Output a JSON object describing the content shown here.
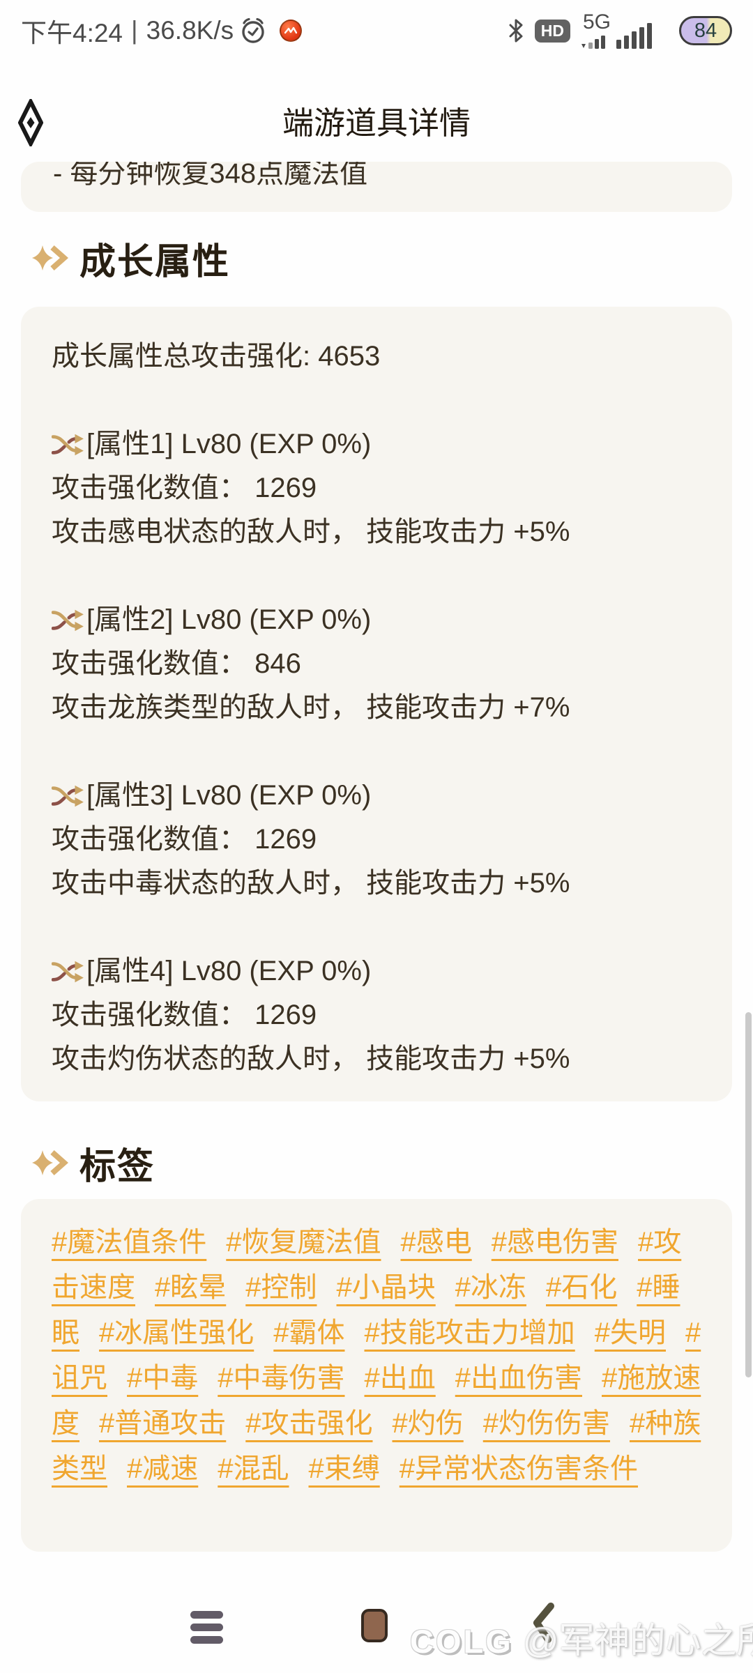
{
  "status_bar": {
    "time": "下午4:24",
    "separator": "|",
    "net_speed": "36.8K/s",
    "network_type": "5G",
    "hd_label": "HD",
    "battery_level": "84"
  },
  "header": {
    "title": "端游道具详情"
  },
  "scroll_top_partial": {
    "text": "- 每分钟恢复348点魔法值"
  },
  "growth_section": {
    "title": "成长属性",
    "total_line": "成长属性总攻击强化: 4653",
    "attributes": [
      {
        "name": "[属性1] Lv80 (EXP 0%)",
        "value_line": "攻击强化数值： 1269",
        "effect_line": "攻击感电状态的敌人时， 技能攻击力 +5%"
      },
      {
        "name": "[属性2] Lv80 (EXP 0%)",
        "value_line": "攻击强化数值： 846",
        "effect_line": "攻击龙族类型的敌人时， 技能攻击力 +7%"
      },
      {
        "name": "[属性3] Lv80 (EXP 0%)",
        "value_line": "攻击强化数值： 1269",
        "effect_line": "攻击中毒状态的敌人时， 技能攻击力 +5%"
      },
      {
        "name": "[属性4] Lv80 (EXP 0%)",
        "value_line": "攻击强化数值： 1269",
        "effect_line": "攻击灼伤状态的敌人时， 技能攻击力 +5%"
      }
    ]
  },
  "tags_section": {
    "title": "标签",
    "tags": [
      "#魔法值条件",
      "#恢复魔法值",
      "#感电",
      "#感电伤害",
      "#攻击速度",
      "#眩晕",
      "#控制",
      "#小晶块",
      "#冰冻",
      "#石化",
      "#睡眠",
      "#冰属性强化",
      "#霸体",
      "#技能攻击力增加",
      "#失明",
      "#诅咒",
      "#中毒",
      "#中毒伤害",
      "#出血",
      "#出血伤害",
      "#施放速度",
      "#普通攻击",
      "#攻击强化",
      "#灼伤",
      "#灼伤伤害",
      "#种族类型",
      "#减速",
      "#混乱",
      "#束缚",
      "#异常状态伤害条件"
    ]
  },
  "bottom_bar": {
    "watermark_brand": "COLG",
    "watermark_text": "@军神的心之所念，"
  },
  "icons": {
    "status_left": [
      "alarm-clock-icon",
      "red-dot-icon"
    ],
    "status_right": [
      "bluetooth-icon",
      "hd-badge",
      "signal-bars-icon",
      "battery-indicator"
    ],
    "header": [
      "app-logo-icon"
    ],
    "sections": [
      "section-arrow-icon"
    ],
    "attribute_rows": [
      "shuffle-icon"
    ],
    "bottom_nav": [
      "recents-icon",
      "home-icon",
      "back-chevron-icon"
    ]
  },
  "colors": {
    "card_bg": "#F7F5F0",
    "text_dark": "#3B3123",
    "section_title": "#281F12",
    "accent_gold": "#D9B070",
    "tag_orange": "#F0A62F",
    "shuffle_maroon": "#8D5148",
    "shuffle_gold": "#C8A262",
    "nav_square_brown": "#8F664E",
    "status_gray": "#4B4B4B"
  }
}
